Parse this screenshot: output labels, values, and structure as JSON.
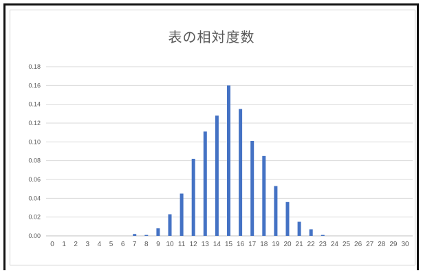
{
  "chart_data": {
    "type": "bar",
    "title": "表の相対度数",
    "xlabel": "",
    "ylabel": "",
    "categories": [
      "0",
      "1",
      "2",
      "3",
      "4",
      "5",
      "6",
      "7",
      "8",
      "9",
      "10",
      "11",
      "12",
      "13",
      "14",
      "15",
      "16",
      "17",
      "18",
      "19",
      "20",
      "21",
      "22",
      "23",
      "24",
      "25",
      "26",
      "27",
      "28",
      "29",
      "30"
    ],
    "values": [
      0,
      0,
      0,
      0,
      0,
      0,
      0,
      0.002,
      0.001,
      0.008,
      0.023,
      0.045,
      0.082,
      0.111,
      0.128,
      0.16,
      0.135,
      0.101,
      0.085,
      0.053,
      0.036,
      0.015,
      0.007,
      0.001,
      0,
      0,
      0,
      0,
      0,
      0,
      0
    ],
    "ylim": [
      0,
      0.18
    ],
    "yticks": [
      "0.00",
      "0.02",
      "0.04",
      "0.06",
      "0.08",
      "0.10",
      "0.12",
      "0.14",
      "0.16",
      "0.18"
    ],
    "grid": true,
    "legend": "none",
    "bar_color": "#4472c4",
    "grid_color": "#d9d9d9"
  }
}
